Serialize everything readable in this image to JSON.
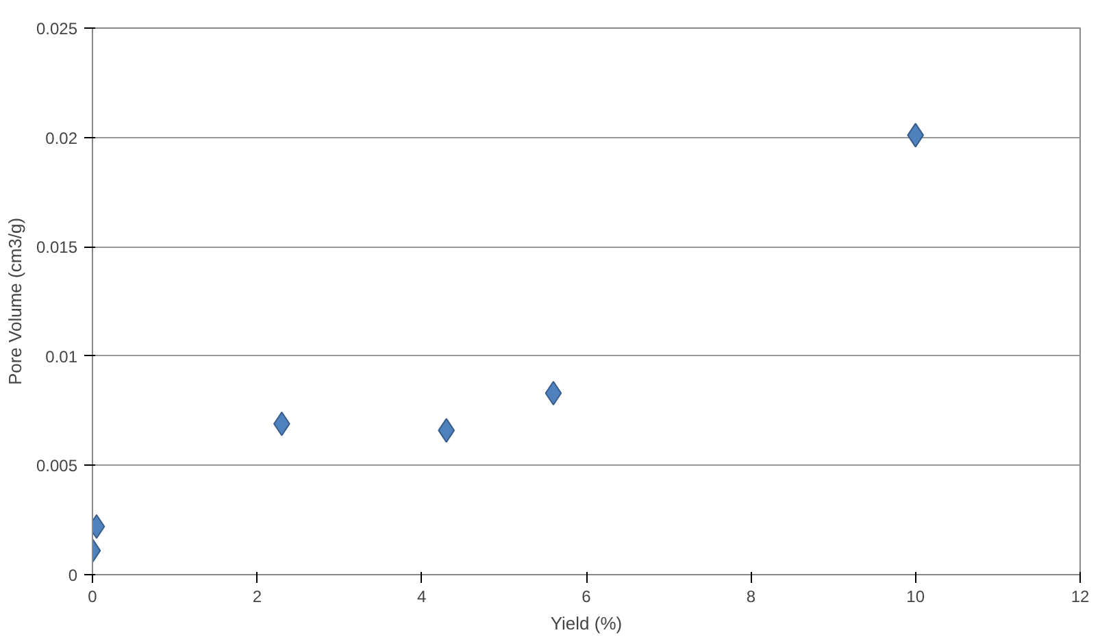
{
  "chart_data": {
    "type": "scatter",
    "xlabel": "Yield (%)",
    "ylabel": "Pore Volume (cm3/g)",
    "x": [
      0,
      0.05,
      2.3,
      4.3,
      5.6,
      10
    ],
    "values": [
      0.0011,
      0.0022,
      0.0069,
      0.0066,
      0.0083,
      0.0201
    ],
    "color": "#4f81bd",
    "marker": "diamond",
    "grid": "y",
    "xlim": [
      0,
      12
    ],
    "xticks": [
      0,
      2,
      4,
      6,
      8,
      10,
      12
    ],
    "ylim": [
      0,
      0.025
    ],
    "yticks": [
      0,
      0.005,
      0.01,
      0.015,
      0.02,
      0.025
    ]
  }
}
